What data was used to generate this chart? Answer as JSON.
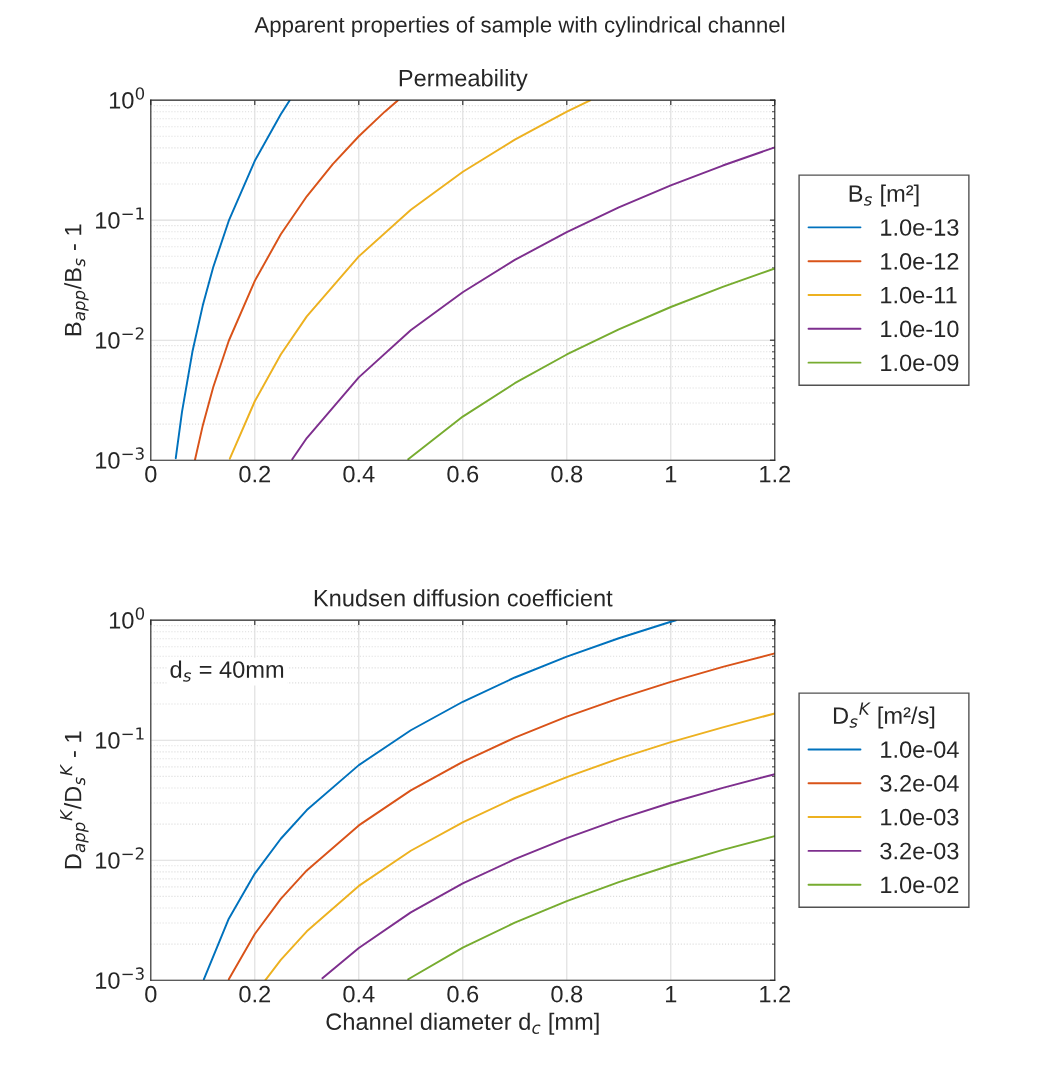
{
  "chart_data": [
    {
      "type": "line",
      "title": "Apparent properties of sample with cylindrical channel",
      "subtitle": "Permeability",
      "ylabel": "B$_{app}$/B$_{s}$ - 1",
      "legend_title": "B$_{s}$ [m²]",
      "log": "y",
      "grid": true,
      "legend": "right",
      "xlim": [
        0,
        1.2
      ],
      "xticks": [
        0,
        0.2,
        0.4,
        0.6,
        0.8,
        1,
        1.2
      ],
      "ylim": [
        0.001,
        1
      ],
      "yticks": [
        {
          "value": 0.001,
          "label": "10$^{−3}$"
        },
        {
          "value": 0.01,
          "label": "10$^{−2}$"
        },
        {
          "value": 0.1,
          "label": "10$^{−1}$"
        },
        {
          "value": 1,
          "label": "10$^{0}$"
        }
      ],
      "series": [
        {
          "name": "1.0e-13",
          "color": "#0072bd",
          "x": [
            0.048,
            0.06,
            0.08,
            0.1,
            0.12,
            0.15,
            0.2,
            0.25,
            0.267
          ],
          "values": [
            0.00104,
            0.00253,
            0.008,
            0.0195,
            0.0405,
            0.0989,
            0.312,
            0.763,
            0.993
          ]
        },
        {
          "name": "1.0e-12",
          "color": "#d95319",
          "x": [
            0.085,
            0.1,
            0.12,
            0.15,
            0.2,
            0.25,
            0.3,
            0.35,
            0.4,
            0.45,
            0.475
          ],
          "values": [
            0.00101,
            0.00195,
            0.00405,
            0.00989,
            0.0312,
            0.0763,
            0.158,
            0.293,
            0.5,
            0.801,
            0.994
          ]
        },
        {
          "name": "1.0e-11",
          "color": "#edb120",
          "x": [
            0.152,
            0.2,
            0.25,
            0.3,
            0.4,
            0.5,
            0.6,
            0.7,
            0.8,
            0.845
          ],
          "values": [
            0.00103,
            0.0031,
            0.00759,
            0.0158,
            0.0499,
            0.122,
            0.253,
            0.469,
            0.8,
            0.995
          ]
        },
        {
          "name": "1.0e-10",
          "color": "#7e2f8e",
          "x": [
            0.272,
            0.3,
            0.4,
            0.5,
            0.6,
            0.7,
            0.8,
            0.9,
            1.0,
            1.1,
            1.2
          ],
          "values": [
            0.00102,
            0.00153,
            0.0049,
            0.0121,
            0.0251,
            0.0466,
            0.0796,
            0.1276,
            0.1947,
            0.285,
            0.404
          ]
        },
        {
          "name": "1.0e-09",
          "color": "#77ac30",
          "x": [
            0.495,
            0.6,
            0.7,
            0.8,
            0.9,
            1.0,
            1.1,
            1.2
          ],
          "values": [
            0.00102,
            0.00231,
            0.00438,
            0.0076,
            0.0123,
            0.0189,
            0.0278,
            0.0396
          ]
        }
      ]
    },
    {
      "type": "line",
      "title": "Knudsen diffusion coefficient",
      "xlabel": "Channel diameter d$_{c}$ [mm]",
      "ylabel": "D$_{app}$$^{K}$/D$_{s}$$^{K}$ - 1",
      "legend_title": "D$_{s}$$^{K}$ [m²/s]",
      "log": "y",
      "grid": true,
      "legend": "right",
      "annotations": [
        "d$_{s}$ = 40mm"
      ],
      "xlim": [
        0,
        1.2
      ],
      "xticks": [
        0,
        0.2,
        0.4,
        0.6,
        0.8,
        1,
        1.2
      ],
      "ylim": [
        0.001,
        1
      ],
      "yticks": [
        {
          "value": 0.001,
          "label": "10$^{−3}$"
        },
        {
          "value": 0.01,
          "label": "10$^{−2}$"
        },
        {
          "value": 0.1,
          "label": "10$^{−1}$"
        },
        {
          "value": 1,
          "label": "10$^{0}$"
        }
      ],
      "series": [
        {
          "name": "1.0e-04",
          "color": "#0072bd",
          "x": [
            0.102,
            0.15,
            0.2,
            0.25,
            0.3,
            0.4,
            0.5,
            0.6,
            0.7,
            0.8,
            0.9,
            1.0,
            1.01
          ],
          "values": [
            0.00102,
            0.00326,
            0.00774,
            0.0151,
            0.0262,
            0.062,
            0.121,
            0.209,
            0.333,
            0.497,
            0.707,
            0.97,
            0.999
          ]
        },
        {
          "name": "3.2e-04",
          "color": "#d95319",
          "x": [
            0.15,
            0.2,
            0.25,
            0.3,
            0.4,
            0.5,
            0.6,
            0.7,
            0.8,
            0.9,
            1.0,
            1.1,
            1.2
          ],
          "values": [
            0.00102,
            0.00243,
            0.00476,
            0.00823,
            0.0195,
            0.0382,
            0.0661,
            0.105,
            0.157,
            0.223,
            0.306,
            0.408,
            0.529
          ]
        },
        {
          "name": "1.0e-03",
          "color": "#edb120",
          "x": [
            0.22,
            0.25,
            0.3,
            0.4,
            0.5,
            0.6,
            0.7,
            0.8,
            0.9,
            1.0,
            1.1,
            1.2
          ],
          "values": [
            0.001,
            0.00148,
            0.00256,
            0.00611,
            0.012,
            0.0207,
            0.033,
            0.0493,
            0.0703,
            0.0964,
            0.128,
            0.167
          ]
        },
        {
          "name": "3.2e-03",
          "color": "#7e2f8e",
          "x": [
            0.33,
            0.4,
            0.5,
            0.6,
            0.7,
            0.8,
            0.9,
            1.0,
            1.1,
            1.2
          ],
          "values": [
            0.00104,
            0.00186,
            0.00368,
            0.00641,
            0.0102,
            0.0153,
            0.0219,
            0.0301,
            0.0401,
            0.0521
          ]
        },
        {
          "name": "1.0e-02",
          "color": "#77ac30",
          "x": [
            0.495,
            0.6,
            0.7,
            0.8,
            0.9,
            1.0,
            1.1,
            1.2
          ],
          "values": [
            0.00102,
            0.00187,
            0.00302,
            0.00457,
            0.00657,
            0.00908,
            0.0122,
            0.0159
          ]
        }
      ]
    }
  ]
}
